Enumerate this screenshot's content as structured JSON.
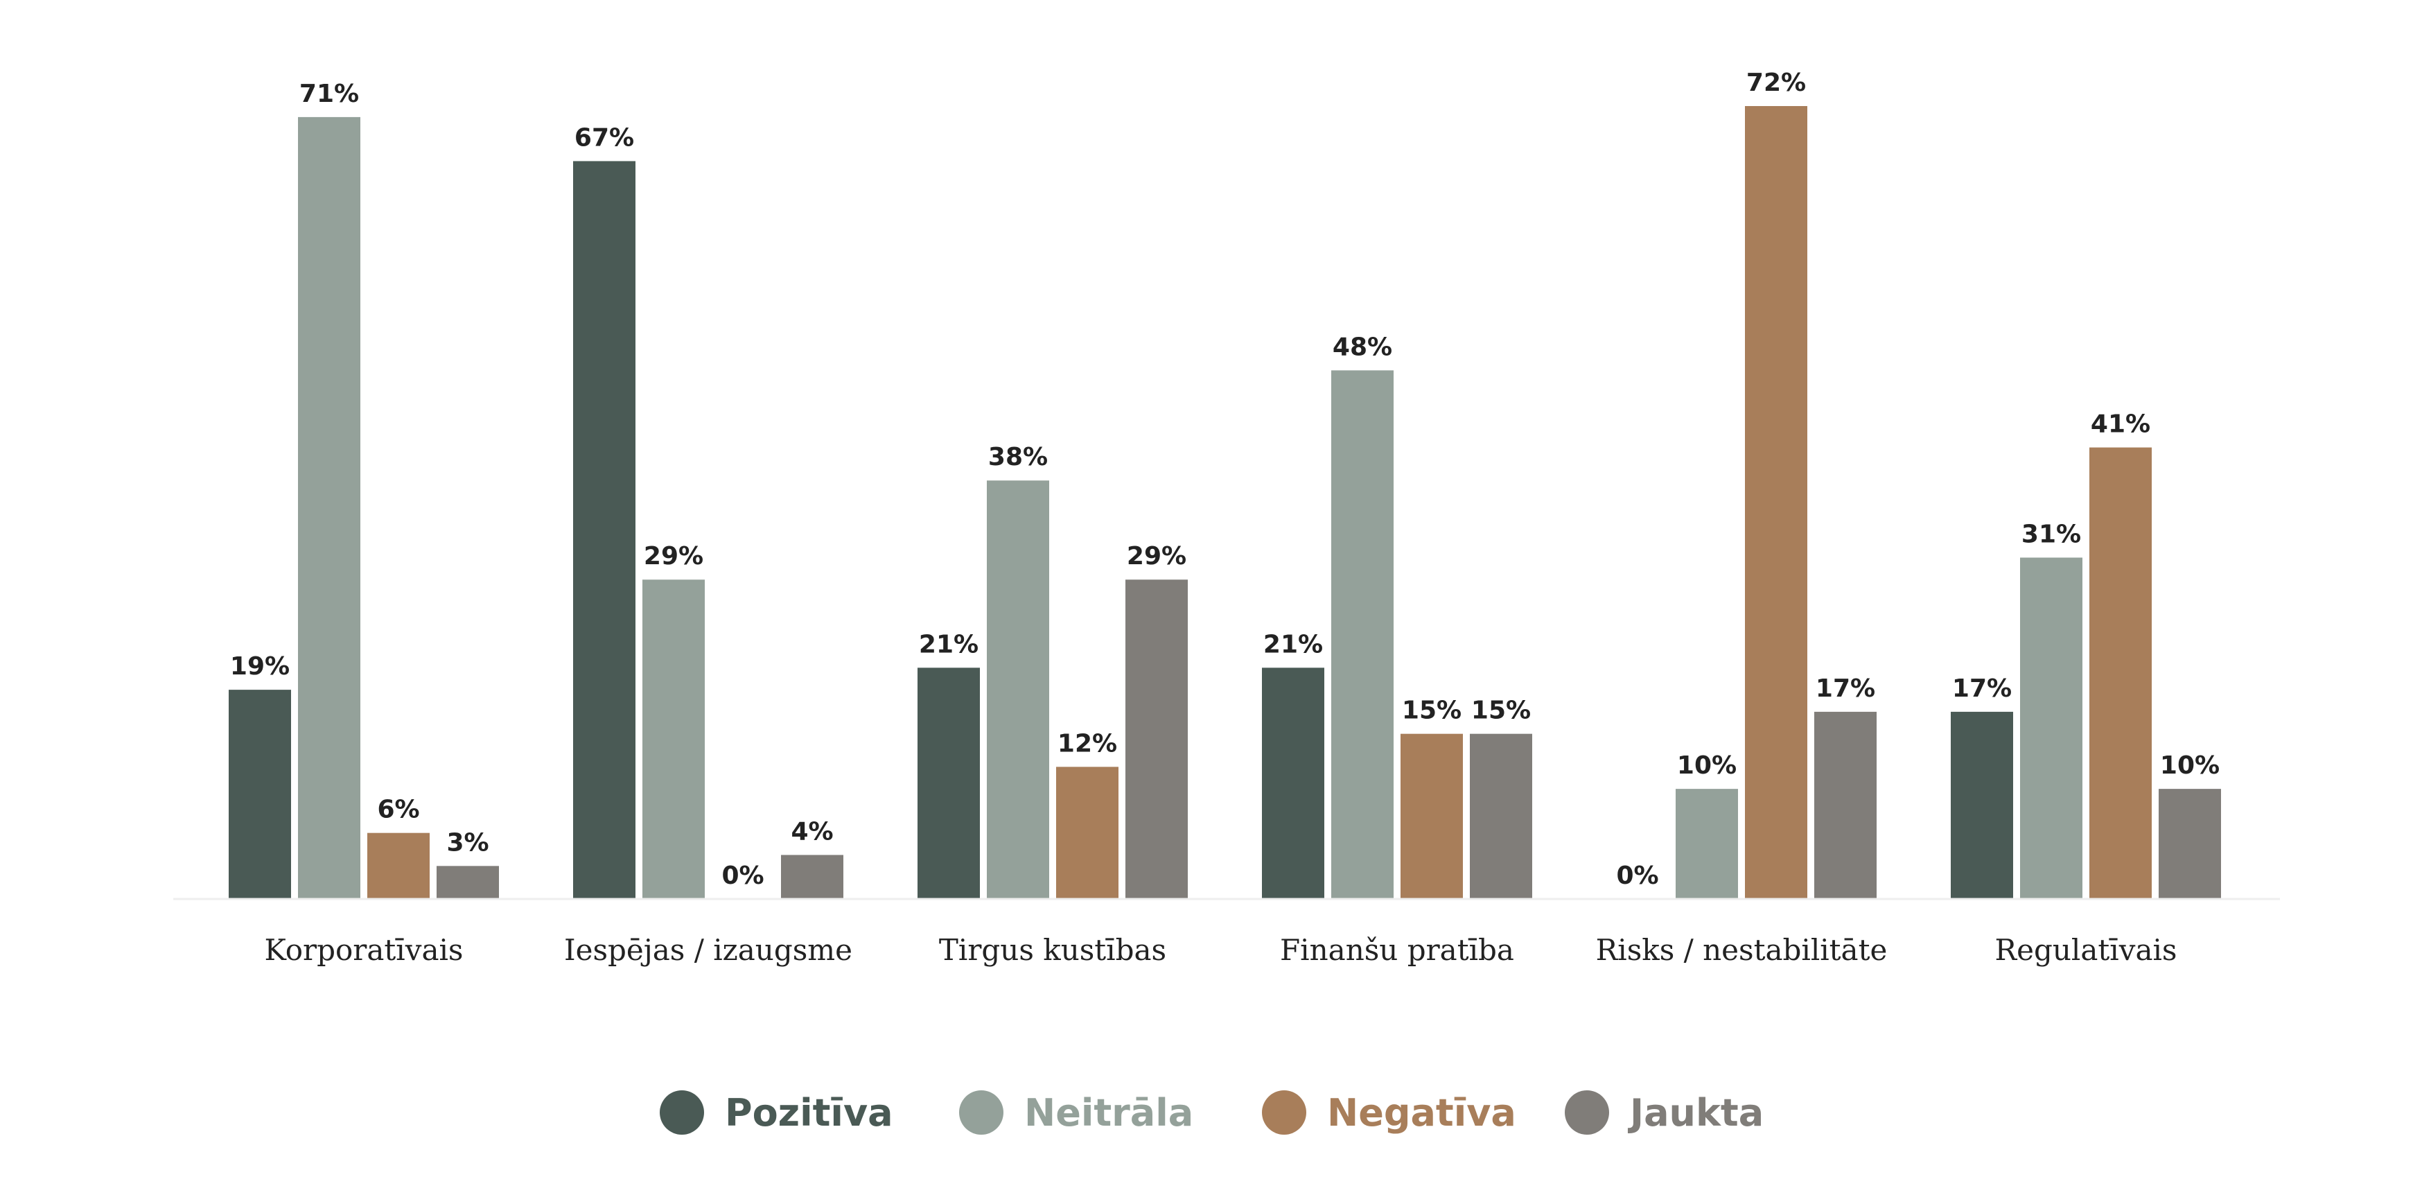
{
  "chart_data": {
    "type": "bar",
    "title": "",
    "xlabel": "",
    "ylabel": "",
    "ylim": [
      0,
      72
    ],
    "grid": false,
    "legend_position": "bottom",
    "categories": [
      "Korporatīvais",
      "Iespējas / izaugsme",
      "Tirgus kustības",
      "Finanšu pratība",
      "Risks / nestabilitāte",
      "Regulatīvais"
    ],
    "series": [
      {
        "name": "Pozitīva",
        "color": "#4a5a55",
        "values": [
          19,
          67,
          21,
          21,
          0,
          17
        ],
        "labels": [
          "19%",
          "67%",
          "21%",
          "21%",
          "0%",
          "17%"
        ]
      },
      {
        "name": "Neitrāla",
        "color": "#94a19a",
        "values": [
          71,
          29,
          38,
          48,
          10,
          31
        ],
        "labels": [
          "71%",
          "29%",
          "38%",
          "48%",
          "10%",
          "31%"
        ]
      },
      {
        "name": "Negatīva",
        "color": "#a87e5a",
        "values": [
          6,
          0,
          12,
          15,
          72,
          41
        ],
        "labels": [
          "6%",
          "0%",
          "12%",
          "15%",
          "72%",
          "41%"
        ]
      },
      {
        "name": "Jaukta",
        "color": "#807d79",
        "values": [
          3,
          4,
          29,
          15,
          17,
          10
        ],
        "labels": [
          "3%",
          "4%",
          "29%",
          "15%",
          "17%",
          "10%"
        ]
      }
    ]
  }
}
